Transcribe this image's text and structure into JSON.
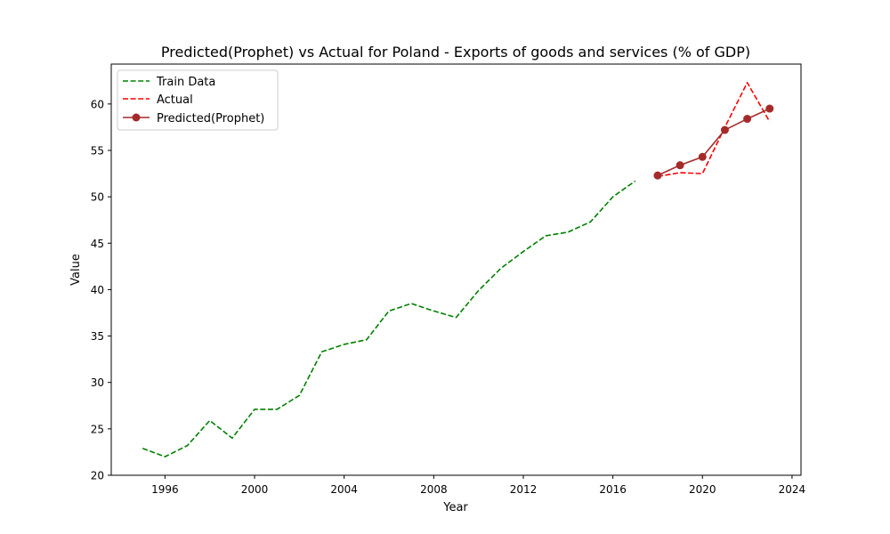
{
  "chart_data": {
    "type": "line",
    "title": "Predicted(Prophet) vs Actual for Poland - Exports of goods and services (% of GDP)",
    "xlabel": "Year",
    "ylabel": "Value",
    "xlim": [
      1993.6,
      2024.4
    ],
    "ylim": [
      20.0,
      64.3
    ],
    "xticks": [
      1996,
      2000,
      2004,
      2008,
      2012,
      2016,
      2020,
      2024
    ],
    "yticks": [
      20,
      25,
      30,
      35,
      40,
      45,
      50,
      55,
      60
    ],
    "grid": false,
    "legend_position": "top-left",
    "series": [
      {
        "name": "Train Data",
        "style": "dashed",
        "color": "#008000",
        "x": [
          1995,
          1996,
          1997,
          1998,
          1999,
          2000,
          2001,
          2002,
          2003,
          2004,
          2005,
          2006,
          2007,
          2008,
          2009,
          2010,
          2011,
          2012,
          2013,
          2014,
          2015,
          2016,
          2017
        ],
        "y": [
          22.9,
          22.0,
          23.2,
          25.9,
          24.0,
          27.1,
          27.1,
          28.6,
          33.3,
          34.1,
          34.6,
          37.7,
          38.5,
          37.7,
          37.0,
          39.9,
          42.3,
          44.1,
          45.8,
          46.2,
          47.3,
          50.0,
          51.7
        ]
      },
      {
        "name": "Actual",
        "style": "dashed",
        "color": "#ff0000",
        "x": [
          2018,
          2019,
          2020,
          2021,
          2022,
          2023
        ],
        "y": [
          52.2,
          52.6,
          52.5,
          57.5,
          62.3,
          58.1
        ]
      },
      {
        "name": "Predicted(Prophet)",
        "style": "solid-marker",
        "color": "#a52a2a",
        "x": [
          2018,
          2019,
          2020,
          2021,
          2022,
          2023
        ],
        "y": [
          52.3,
          53.4,
          54.3,
          57.2,
          58.4,
          59.5
        ]
      }
    ]
  }
}
